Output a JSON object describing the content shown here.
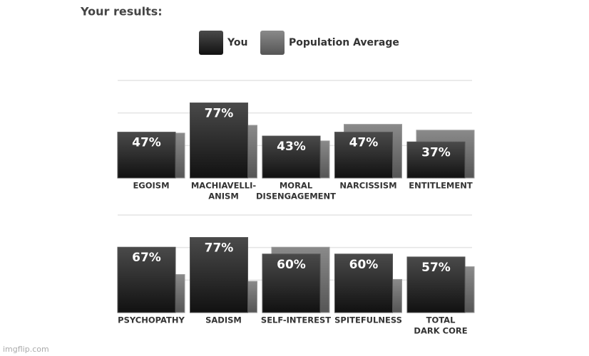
{
  "title": "Your results:",
  "watermark": "imgflip.com",
  "chart_data": [
    {
      "type": "bar",
      "categories": [
        [
          "EGOISM"
        ],
        [
          "MACHIAVELLI-",
          "ANISM"
        ],
        [
          "MORAL",
          "DISENGAGEMENT"
        ],
        [
          "NARCISSISM"
        ],
        [
          "ENTITLEMENT"
        ]
      ],
      "series": [
        {
          "name": "You",
          "color": "#1c1c1c",
          "values": [
            47,
            77,
            43,
            47,
            37
          ],
          "value_labels": [
            "47%",
            "77%",
            "43%",
            "47%",
            "37%"
          ]
        },
        {
          "name": "Population Average",
          "color": "#666666",
          "values": [
            46,
            54,
            38,
            55,
            49
          ]
        }
      ],
      "ylim": [
        0,
        100
      ],
      "yticks": [
        33.3,
        66.7,
        100
      ],
      "grid": true
    },
    {
      "type": "bar",
      "categories": [
        [
          "PSYCHOPATHY"
        ],
        [
          "SADISM"
        ],
        [
          "SELF-INTEREST"
        ],
        [
          "SPITEFULNESS"
        ],
        [
          "TOTAL",
          "DARK CORE"
        ]
      ],
      "series": [
        {
          "name": "You",
          "color": "#1c1c1c",
          "values": [
            67,
            77,
            60,
            60,
            57
          ],
          "value_labels": [
            "67%",
            "77%",
            "60%",
            "60%",
            "57%"
          ]
        },
        {
          "name": "Population Average",
          "color": "#666666",
          "values": [
            39,
            32,
            67,
            34,
            47
          ]
        }
      ],
      "ylim": [
        0,
        100
      ],
      "yticks": [
        33.3,
        66.7,
        100
      ],
      "grid": true
    }
  ]
}
